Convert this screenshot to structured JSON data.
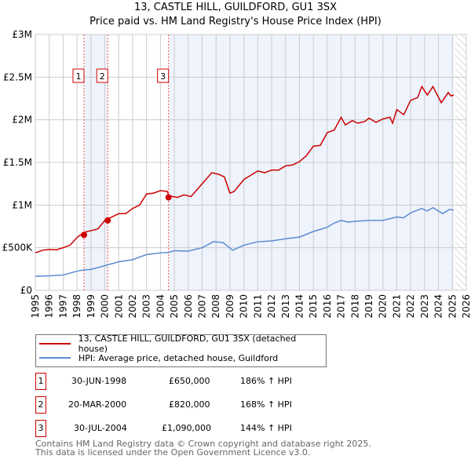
{
  "title": "13, CASTLE HILL, GUILDFORD, GU1 3SX",
  "subtitle": "Price paid vs. HM Land Registry's House Price Index (HPI)",
  "chart_data": {
    "type": "line",
    "xlim": [
      1995,
      2026
    ],
    "ylim": [
      0,
      3000000
    ],
    "yticks": [
      {
        "v": 0,
        "label": "£0"
      },
      {
        "v": 500000,
        "label": "£500K"
      },
      {
        "v": 1000000,
        "label": "£1M"
      },
      {
        "v": 1500000,
        "label": "£1.5M"
      },
      {
        "v": 2000000,
        "label": "£2M"
      },
      {
        "v": 2500000,
        "label": "£2.5M"
      },
      {
        "v": 3000000,
        "label": "£3M"
      }
    ],
    "xticks": [
      1995,
      1996,
      1997,
      1998,
      1999,
      2000,
      2001,
      2002,
      2003,
      2004,
      2005,
      2006,
      2007,
      2008,
      2009,
      2010,
      2011,
      2012,
      2013,
      2014,
      2015,
      2016,
      2017,
      2018,
      2019,
      2020,
      2021,
      2022,
      2023,
      2024,
      2025,
      2026
    ],
    "grid": true,
    "shaded_ranges": [
      [
        1998.5,
        2000.21
      ],
      [
        2004.58,
        2025.1
      ]
    ],
    "hatched_from": 2025.2,
    "series": [
      {
        "name": "13, CASTLE HILL, GUILDFORD, GU1 3SX (detached house)",
        "color": "#cc0000",
        "x": [
          1995,
          1995.5,
          1996,
          1996.5,
          1997,
          1997.5,
          1998,
          1998.5,
          1999,
          1999.5,
          2000,
          2000.5,
          2001,
          2001.5,
          2002,
          2002.5,
          2003,
          2003.5,
          2004,
          2004.5,
          2004.6,
          2005.2,
          2005.7,
          2006.2,
          2007,
          2007.7,
          2008.2,
          2008.6,
          2009,
          2009.3,
          2010,
          2010.7,
          2011,
          2011.5,
          2012,
          2012.5,
          2013,
          2013.5,
          2014,
          2014.5,
          2015,
          2015.5,
          2016,
          2016.5,
          2017,
          2017.3,
          2017.8,
          2018.2,
          2018.7,
          2019,
          2019.5,
          2020,
          2020.5,
          2020.7,
          2021,
          2021.5,
          2022,
          2022.5,
          2022.8,
          2023.2,
          2023.6,
          2024.2,
          2024.7,
          2024.9,
          2025.1
        ],
        "y": [
          440000,
          470000,
          480000,
          475000,
          500000,
          530000,
          620000,
          680000,
          700000,
          720000,
          820000,
          860000,
          900000,
          900000,
          960000,
          1000000,
          1130000,
          1140000,
          1170000,
          1160000,
          1110000,
          1090000,
          1120000,
          1100000,
          1250000,
          1380000,
          1360000,
          1330000,
          1140000,
          1160000,
          1300000,
          1370000,
          1400000,
          1380000,
          1410000,
          1410000,
          1460000,
          1470000,
          1510000,
          1580000,
          1690000,
          1700000,
          1850000,
          1880000,
          2030000,
          1940000,
          1990000,
          1960000,
          1980000,
          2020000,
          1970000,
          2010000,
          2030000,
          1960000,
          2120000,
          2060000,
          2230000,
          2260000,
          2390000,
          2290000,
          2390000,
          2200000,
          2320000,
          2280000,
          2290000
        ]
      },
      {
        "name": "HPI: Average price, detached house, Guildford",
        "color": "#5b8bd0",
        "x": [
          1995,
          1996,
          1997,
          1998,
          1998.5,
          1999,
          2000,
          2001,
          2002,
          2003,
          2004,
          2004.6,
          2005,
          2006,
          2007,
          2007.8,
          2008.5,
          2009.2,
          2010,
          2011,
          2012,
          2013,
          2014,
          2015,
          2016,
          2016.5,
          2017,
          2017.5,
          2018,
          2019,
          2020,
          2020.5,
          2021,
          2021.5,
          2022,
          2022.8,
          2023.2,
          2023.6,
          2024.3,
          2024.8,
          2025.1
        ],
        "y": [
          165000,
          170000,
          180000,
          225000,
          240000,
          245000,
          290000,
          335000,
          360000,
          420000,
          440000,
          445000,
          465000,
          460000,
          500000,
          570000,
          560000,
          470000,
          530000,
          570000,
          580000,
          605000,
          625000,
          690000,
          740000,
          790000,
          820000,
          800000,
          810000,
          820000,
          820000,
          840000,
          860000,
          850000,
          910000,
          960000,
          930000,
          970000,
          900000,
          950000,
          940000
        ]
      }
    ],
    "sales": [
      {
        "n": "1",
        "x": 1998.5,
        "y": 650000
      },
      {
        "n": "2",
        "x": 2000.21,
        "y": 820000
      },
      {
        "n": "3",
        "x": 2004.58,
        "y": 1090000
      }
    ]
  },
  "legend": [
    "13, CASTLE HILL, GUILDFORD, GU1 3SX (detached house)",
    "HPI: Average price, detached house, Guildford"
  ],
  "transactions": [
    {
      "n": "1",
      "date": "30-JUN-1998",
      "price": "£650,000",
      "hpi": "186% ↑ HPI"
    },
    {
      "n": "2",
      "date": "20-MAR-2000",
      "price": "£820,000",
      "hpi": "168% ↑ HPI"
    },
    {
      "n": "3",
      "date": "30-JUL-2004",
      "price": "£1,090,000",
      "hpi": "144% ↑ HPI"
    }
  ],
  "footer": [
    "Contains HM Land Registry data © Crown copyright and database right 2025.",
    "This data is licensed under the Open Government Licence v3.0."
  ]
}
